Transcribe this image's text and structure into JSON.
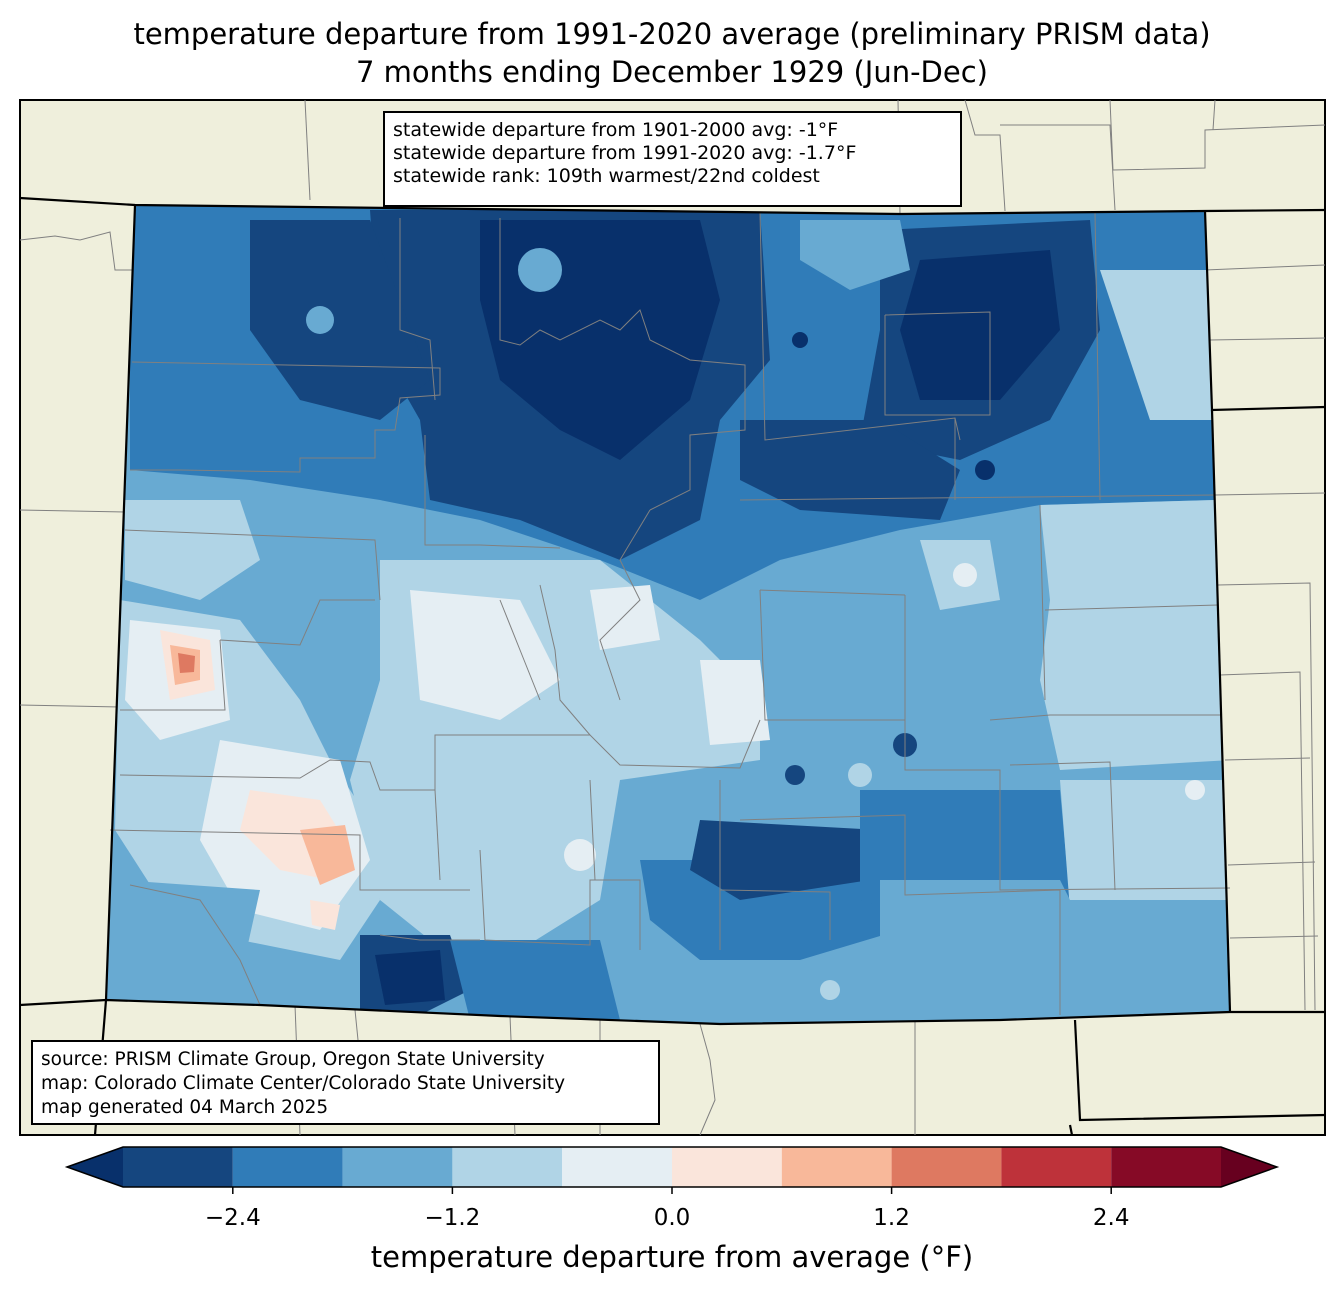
{
  "title": {
    "line1": "temperature departure from 1991-2020 average (preliminary PRISM data)",
    "line2": "7 months ending December 1929 (Jun-Dec)"
  },
  "stats_box": {
    "line1": "statewide departure from 1901-2000 avg: -1°F",
    "line2": "statewide departure from 1991-2020 avg: -1.7°F",
    "line3": "statewide rank: 109th warmest/22nd coldest"
  },
  "source_box": {
    "line1": "source: PRISM Climate Group, Oregon State University",
    "line2": "map: Colorado Climate Center/Colorado State University",
    "line3": "map generated 04 March 2025"
  },
  "colorbar": {
    "label": "temperature departure from average (°F)",
    "ticks": [
      "−2.4",
      "−1.2",
      "0.0",
      "1.2",
      "2.4"
    ],
    "tick_values": [
      -2.4,
      -1.2,
      0.0,
      1.2,
      2.4
    ],
    "bounds": [
      -3.0,
      -2.4,
      -1.8,
      -1.2,
      -0.6,
      0.0,
      0.6,
      1.2,
      1.8,
      2.4,
      3.0
    ],
    "colors": [
      "#15467f",
      "#307cb8",
      "#68aad2",
      "#b0d4e6",
      "#e5eef3",
      "#fae5db",
      "#f8b89a",
      "#de7961",
      "#be323a",
      "#860a26"
    ],
    "under_color": "#08306b",
    "over_color": "#67001f"
  },
  "map_colors": {
    "land": "#efefdc",
    "county_lines": "#808080",
    "state_lines": "#000000"
  }
}
